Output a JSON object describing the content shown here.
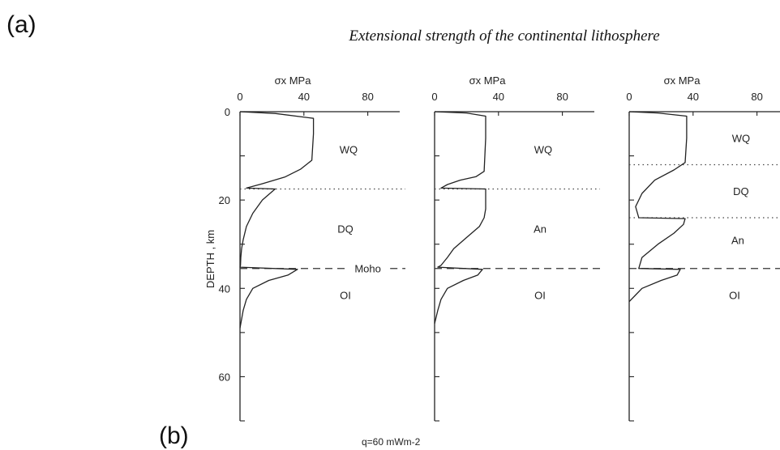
{
  "labels": {
    "panel_a": "(a)",
    "panel_b": "(b)",
    "title": "Extensional strength of the continental lithosphere",
    "ylabel": "DEPTH , km",
    "heat_flow": "q=60 mWm-2"
  },
  "chart_data": [
    {
      "type": "line",
      "xlabel": "σx MPa",
      "ylabel": "DEPTH , km",
      "x_ticks": [
        "0",
        "40",
        "80"
      ],
      "y_ticks": [
        "0",
        "20",
        "40",
        "60"
      ],
      "xlim": [
        0,
        100
      ],
      "ylim": [
        0,
        70
      ],
      "series": [
        {
          "x": [
            0,
            22,
            46,
            46,
            45,
            38,
            28,
            14,
            4,
            22,
            14,
            8,
            4,
            2,
            1,
            0.5,
            0.3,
            0,
            36,
            30,
            18,
            8,
            4,
            2,
            0
          ],
          "y": [
            0,
            0.4,
            1.5,
            5,
            11,
            13,
            14.8,
            16.3,
            17.3,
            17.5,
            20,
            23,
            26,
            29,
            31,
            33,
            34.8,
            35.2,
            35.7,
            37,
            38.2,
            40,
            42.5,
            45,
            49
          ]
        }
      ],
      "boundaries": [
        {
          "depth": 17.5,
          "style": "dotted"
        },
        {
          "depth": 35.5,
          "style": "dashed",
          "label": "Moho"
        }
      ],
      "layer_labels": [
        {
          "text": "WQ",
          "x": 68,
          "y": 8.5
        },
        {
          "text": "DQ",
          "x": 66,
          "y": 26.5
        },
        {
          "text": "OI",
          "x": 66,
          "y": 41.5
        }
      ]
    },
    {
      "type": "line",
      "xlabel": "σx MPa",
      "x_ticks": [
        "0",
        "40",
        "80"
      ],
      "xlim": [
        0,
        100
      ],
      "ylim": [
        0,
        70
      ],
      "series": [
        {
          "x": [
            0,
            20,
            32,
            32,
            31,
            26,
            16,
            8,
            4,
            32,
            32,
            31,
            28,
            20,
            12,
            8,
            4,
            2,
            30,
            27,
            18,
            8,
            4,
            2,
            0
          ],
          "y": [
            0,
            0.3,
            1,
            6,
            13.5,
            14.7,
            15.5,
            16.5,
            17.3,
            17.5,
            22,
            24,
            26,
            28.5,
            31,
            33,
            34.8,
            35.2,
            35.7,
            37,
            38.2,
            40,
            42.5,
            45,
            48
          ]
        }
      ],
      "boundaries": [
        {
          "depth": 17.5,
          "style": "dotted"
        },
        {
          "depth": 35.5,
          "style": "dashed"
        }
      ],
      "layer_labels": [
        {
          "text": "WQ",
          "x": 68,
          "y": 8.5
        },
        {
          "text": "An",
          "x": 66,
          "y": 26.5
        },
        {
          "text": "OI",
          "x": 66,
          "y": 41.5
        }
      ]
    },
    {
      "type": "line",
      "xlabel": "σx MPa",
      "x_ticks": [
        "0",
        "40",
        "80"
      ],
      "xlim": [
        0,
        100
      ],
      "ylim": [
        0,
        70
      ],
      "series": [
        {
          "x": [
            0,
            18,
            36,
            36,
            35,
            28,
            16,
            8,
            4,
            6,
            35,
            34,
            28,
            18,
            8,
            6,
            32,
            30,
            20,
            8,
            4,
            0
          ],
          "y": [
            0,
            0.3,
            1,
            6,
            11.5,
            13.2,
            15.5,
            18.5,
            21.5,
            24,
            24.2,
            25.5,
            27.5,
            30,
            33,
            35.5,
            35.7,
            37,
            38.2,
            40,
            41.5,
            43
          ]
        }
      ],
      "boundaries": [
        {
          "depth": 12,
          "style": "dotted"
        },
        {
          "depth": 24,
          "style": "dotted"
        },
        {
          "depth": 35.5,
          "style": "dashed"
        }
      ],
      "layer_labels": [
        {
          "text": "WQ",
          "x": 70,
          "y": 6
        },
        {
          "text": "DQ",
          "x": 70,
          "y": 18
        },
        {
          "text": "An",
          "x": 68,
          "y": 29
        },
        {
          "text": "OI",
          "x": 66,
          "y": 41.5
        }
      ]
    }
  ]
}
